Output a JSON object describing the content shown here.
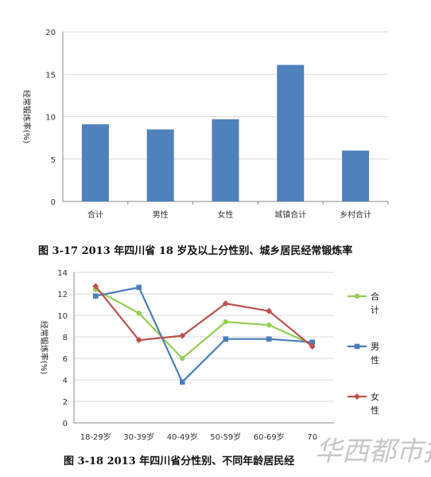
{
  "chart_data": [
    {
      "type": "bar",
      "caption": "图 3-17   2013 年四川省 18 岁及以上分性别、城乡居民经常锻炼率",
      "ylabel": "经常锻炼率(%)",
      "ylim": [
        0,
        20
      ],
      "yticks": [
        0,
        5,
        10,
        15,
        20
      ],
      "categories": [
        "合计",
        "男性",
        "女性",
        "城镇合计",
        "乡村合计"
      ],
      "values": [
        9.1,
        8.5,
        9.7,
        16.1,
        6.0
      ],
      "color": "#4f81bd"
    },
    {
      "type": "line",
      "caption": "图 3-18   2013 年四川省分性别、不同年龄居民经",
      "ylabel": "经常锻炼率(%)",
      "ylim": [
        0,
        14
      ],
      "yticks": [
        0,
        2,
        4,
        6,
        8,
        10,
        12,
        14
      ],
      "categories": [
        "18-29岁",
        "30-39岁",
        "40-49岁",
        "50-59岁",
        "60-69岁",
        "70"
      ],
      "series": [
        {
          "name": "合计",
          "legend_lines": [
            "合",
            "计"
          ],
          "color": "#92d050",
          "marker": "circle",
          "values": [
            12.4,
            10.2,
            6.0,
            9.4,
            9.1,
            7.3
          ]
        },
        {
          "name": "男性",
          "legend_lines": [
            "男",
            "性"
          ],
          "color": "#4a7ebb",
          "marker": "square",
          "values": [
            11.8,
            12.6,
            3.8,
            7.8,
            7.8,
            7.5
          ]
        },
        {
          "name": "女性",
          "legend_lines": [
            "女",
            "性"
          ],
          "color": "#c0504d",
          "marker": "diamond",
          "values": [
            12.7,
            7.7,
            8.1,
            11.1,
            10.4,
            7.1
          ]
        }
      ],
      "grid": true,
      "legend_position": "right"
    }
  ],
  "watermark": {
    "text": "华西都市报"
  }
}
